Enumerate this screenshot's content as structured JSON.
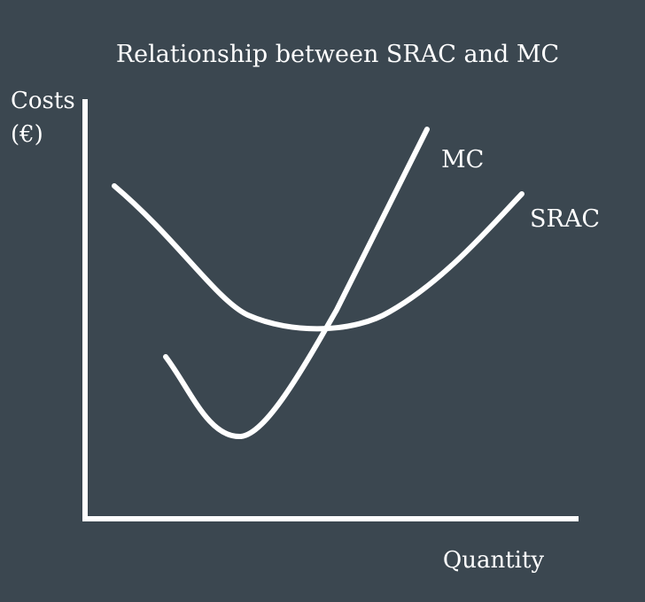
{
  "colors": {
    "background": "#3b4750",
    "foreground": "#ffffff"
  },
  "title": "Relationship between SRAC and MC",
  "y_axis_label": {
    "line1": "Costs",
    "line2": "(€)"
  },
  "x_axis_label": "Quantity",
  "curves": {
    "mc": {
      "label": "MC",
      "shape": "U-shaped, cuts SRAC at its minimum"
    },
    "srac": {
      "label": "SRAC",
      "shape": "U-shaped"
    }
  }
}
